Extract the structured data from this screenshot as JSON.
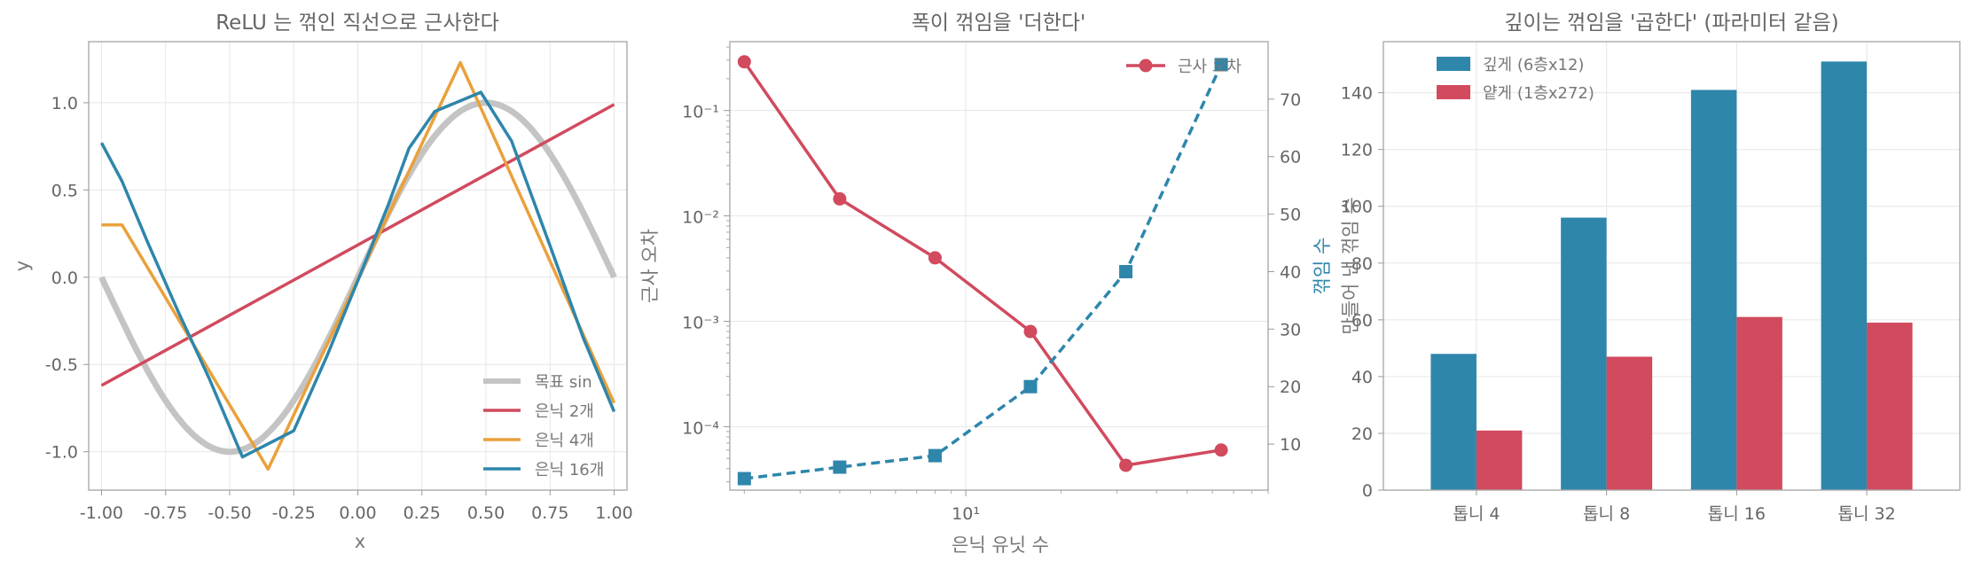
{
  "chart_data": [
    {
      "type": "line",
      "title": "ReLU 는 꺾인 직선으로 근사한다",
      "xlabel": "x",
      "ylabel": "y",
      "xlim": [
        -1.05,
        1.05
      ],
      "ylim": [
        -1.22,
        1.35
      ],
      "xticks": [
        -1.0,
        -0.75,
        -0.5,
        -0.25,
        0.0,
        0.25,
        0.5,
        0.75,
        1.0
      ],
      "xtick_labels": [
        "-1.00",
        "-0.75",
        "-0.50",
        "-0.25",
        "0.00",
        "0.25",
        "0.50",
        "0.75",
        "1.00"
      ],
      "yticks": [
        -1.0,
        -0.5,
        0.0,
        0.5,
        1.0
      ],
      "ytick_labels": [
        "-1.0",
        "-0.5",
        "0.0",
        "0.5",
        "1.0"
      ],
      "grid": true,
      "legend_position": "lower-right",
      "series": [
        {
          "name": "목표 sin",
          "color": "#c4c4c4",
          "width": 7,
          "function": "sin_target"
        },
        {
          "name": "은닉 2개",
          "color": "#d14a5e",
          "width": 3.5,
          "x": [
            -1.0,
            1.0
          ],
          "y": [
            -0.62,
            0.99
          ]
        },
        {
          "name": "은닉 4개",
          "color": "#e9a13b",
          "width": 3.5,
          "x": [
            -1.0,
            -0.92,
            -0.35,
            0.4,
            1.0
          ],
          "y": [
            0.3,
            0.3,
            -1.1,
            1.23,
            -0.72
          ]
        },
        {
          "name": "은닉 16개",
          "color": "#2e86ab",
          "width": 3.5,
          "x": [
            -1.0,
            -0.92,
            -0.82,
            -0.7,
            -0.58,
            -0.45,
            -0.25,
            -0.12,
            0.0,
            0.12,
            0.2,
            0.3,
            0.48,
            0.6,
            0.75,
            0.88,
            1.0
          ],
          "y": [
            0.77,
            0.55,
            0.2,
            -0.2,
            -0.58,
            -1.03,
            -0.88,
            -0.45,
            -0.02,
            0.42,
            0.74,
            0.95,
            1.06,
            0.78,
            0.18,
            -0.35,
            -0.77
          ]
        }
      ]
    },
    {
      "type": "line",
      "title": "폭이 꺾임을 '더한다'",
      "xlabel": "은닉 유닛 수",
      "ylabel": "근사 오차",
      "ylabel_right": "꺾임 수",
      "xscale": "log",
      "yscale": "log",
      "xlim": [
        1.8,
        90
      ],
      "ylim": [
        2.5e-05,
        0.45
      ],
      "ylim_right": [
        2,
        80
      ],
      "xticks": [
        10
      ],
      "xtick_labels": [
        "10¹"
      ],
      "yticks": [
        0.0001,
        0.001,
        0.01,
        0.1
      ],
      "ytick_labels": [
        "10⁻⁴",
        "10⁻³",
        "10⁻²",
        "10⁻¹"
      ],
      "yticks_right": [
        10,
        20,
        30,
        40,
        50,
        60,
        70
      ],
      "grid": true,
      "legend_position": "top-right",
      "series": [
        {
          "name": "근사 오차",
          "color": "#d14a5e",
          "axis": "left",
          "marker": "circle",
          "linestyle": "solid",
          "x": [
            2,
            4,
            8,
            16,
            32,
            64
          ],
          "y": [
            0.29,
            0.0145,
            0.004,
            0.0008,
            4.3e-05,
            6e-05
          ]
        },
        {
          "name": "꺾임 수",
          "color": "#2e86ab",
          "axis": "right",
          "marker": "square",
          "linestyle": "dashed",
          "x": [
            2,
            4,
            8,
            16,
            32,
            64
          ],
          "y": [
            4,
            6,
            8,
            20,
            40,
            76
          ]
        }
      ],
      "legend_label": "근사 오차"
    },
    {
      "type": "bar",
      "title": "깊이는 꺾임을 '곱한다' (파라미터 같음)",
      "xlabel": "",
      "ylabel": "만들어 낸 꺾임 수",
      "categories": [
        "톱니 4",
        "톱니 8",
        "톱니 16",
        "톱니 32"
      ],
      "ylim": [
        0,
        158
      ],
      "yticks": [
        0,
        20,
        40,
        60,
        80,
        100,
        120,
        140
      ],
      "grid": true,
      "legend_position": "top-left",
      "series": [
        {
          "name": "깊게 (6층x12)",
          "color": "#2e86ab",
          "values": [
            48,
            96,
            141,
            151
          ]
        },
        {
          "name": "얕게 (1층x272)",
          "color": "#d14a5e",
          "values": [
            21,
            47,
            61,
            59
          ]
        }
      ]
    }
  ]
}
